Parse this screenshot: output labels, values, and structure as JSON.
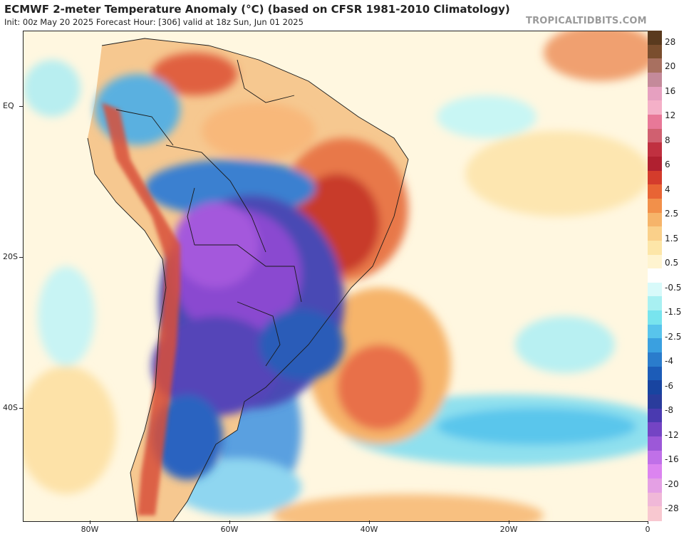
{
  "header": {
    "title": "ECMWF 2-meter Temperature Anomaly (°C) (based on CFSR 1981-2010 Climatology)",
    "subtitle": "Init: 00z May 20 2025   Forecast Hour: [306]   valid at 18z Sun, Jun 01 2025",
    "watermark": "TROPICALTIDBITS.COM"
  },
  "axes": {
    "lat_labels": [
      "EQ",
      "20S",
      "40S"
    ],
    "lon_labels": [
      "80W",
      "60W",
      "40W",
      "20W",
      "0"
    ]
  },
  "colorbar": {
    "labels": [
      "28",
      "20",
      "16",
      "12",
      "8",
      "6",
      "4",
      "2.5",
      "1.5",
      "0.5",
      "-0.5",
      "-1.5",
      "-2.5",
      "-4",
      "-6",
      "-8",
      "-12",
      "-16",
      "-20",
      "-28"
    ],
    "colors": [
      "#5a3a1e",
      "#7a4e2e",
      "#a87060",
      "#c48a9a",
      "#e6a0c0",
      "#f4b0c8",
      "#e87898",
      "#d06070",
      "#c03040",
      "#b02030",
      "#d43c2c",
      "#e86434",
      "#f2904a",
      "#f6b46a",
      "#fad08a",
      "#fde6a8",
      "#fff4d0",
      "#ffffff",
      "#d8fafa",
      "#a8f0f2",
      "#78e4ee",
      "#58c4ec",
      "#3aa0e0",
      "#2a7ccc",
      "#1c5cb8",
      "#1844a0",
      "#2a3c9c",
      "#4a3ab0",
      "#7444c4",
      "#9c58d8",
      "#c070e8",
      "#dc84f0",
      "#e4a0e4",
      "#f0b8d8",
      "#f8c8d0"
    ]
  },
  "map_colors": {
    "ocean_neutral": "#fffbe8",
    "cold_core": "#8a48d0",
    "warm_core": "#c83a2a"
  }
}
